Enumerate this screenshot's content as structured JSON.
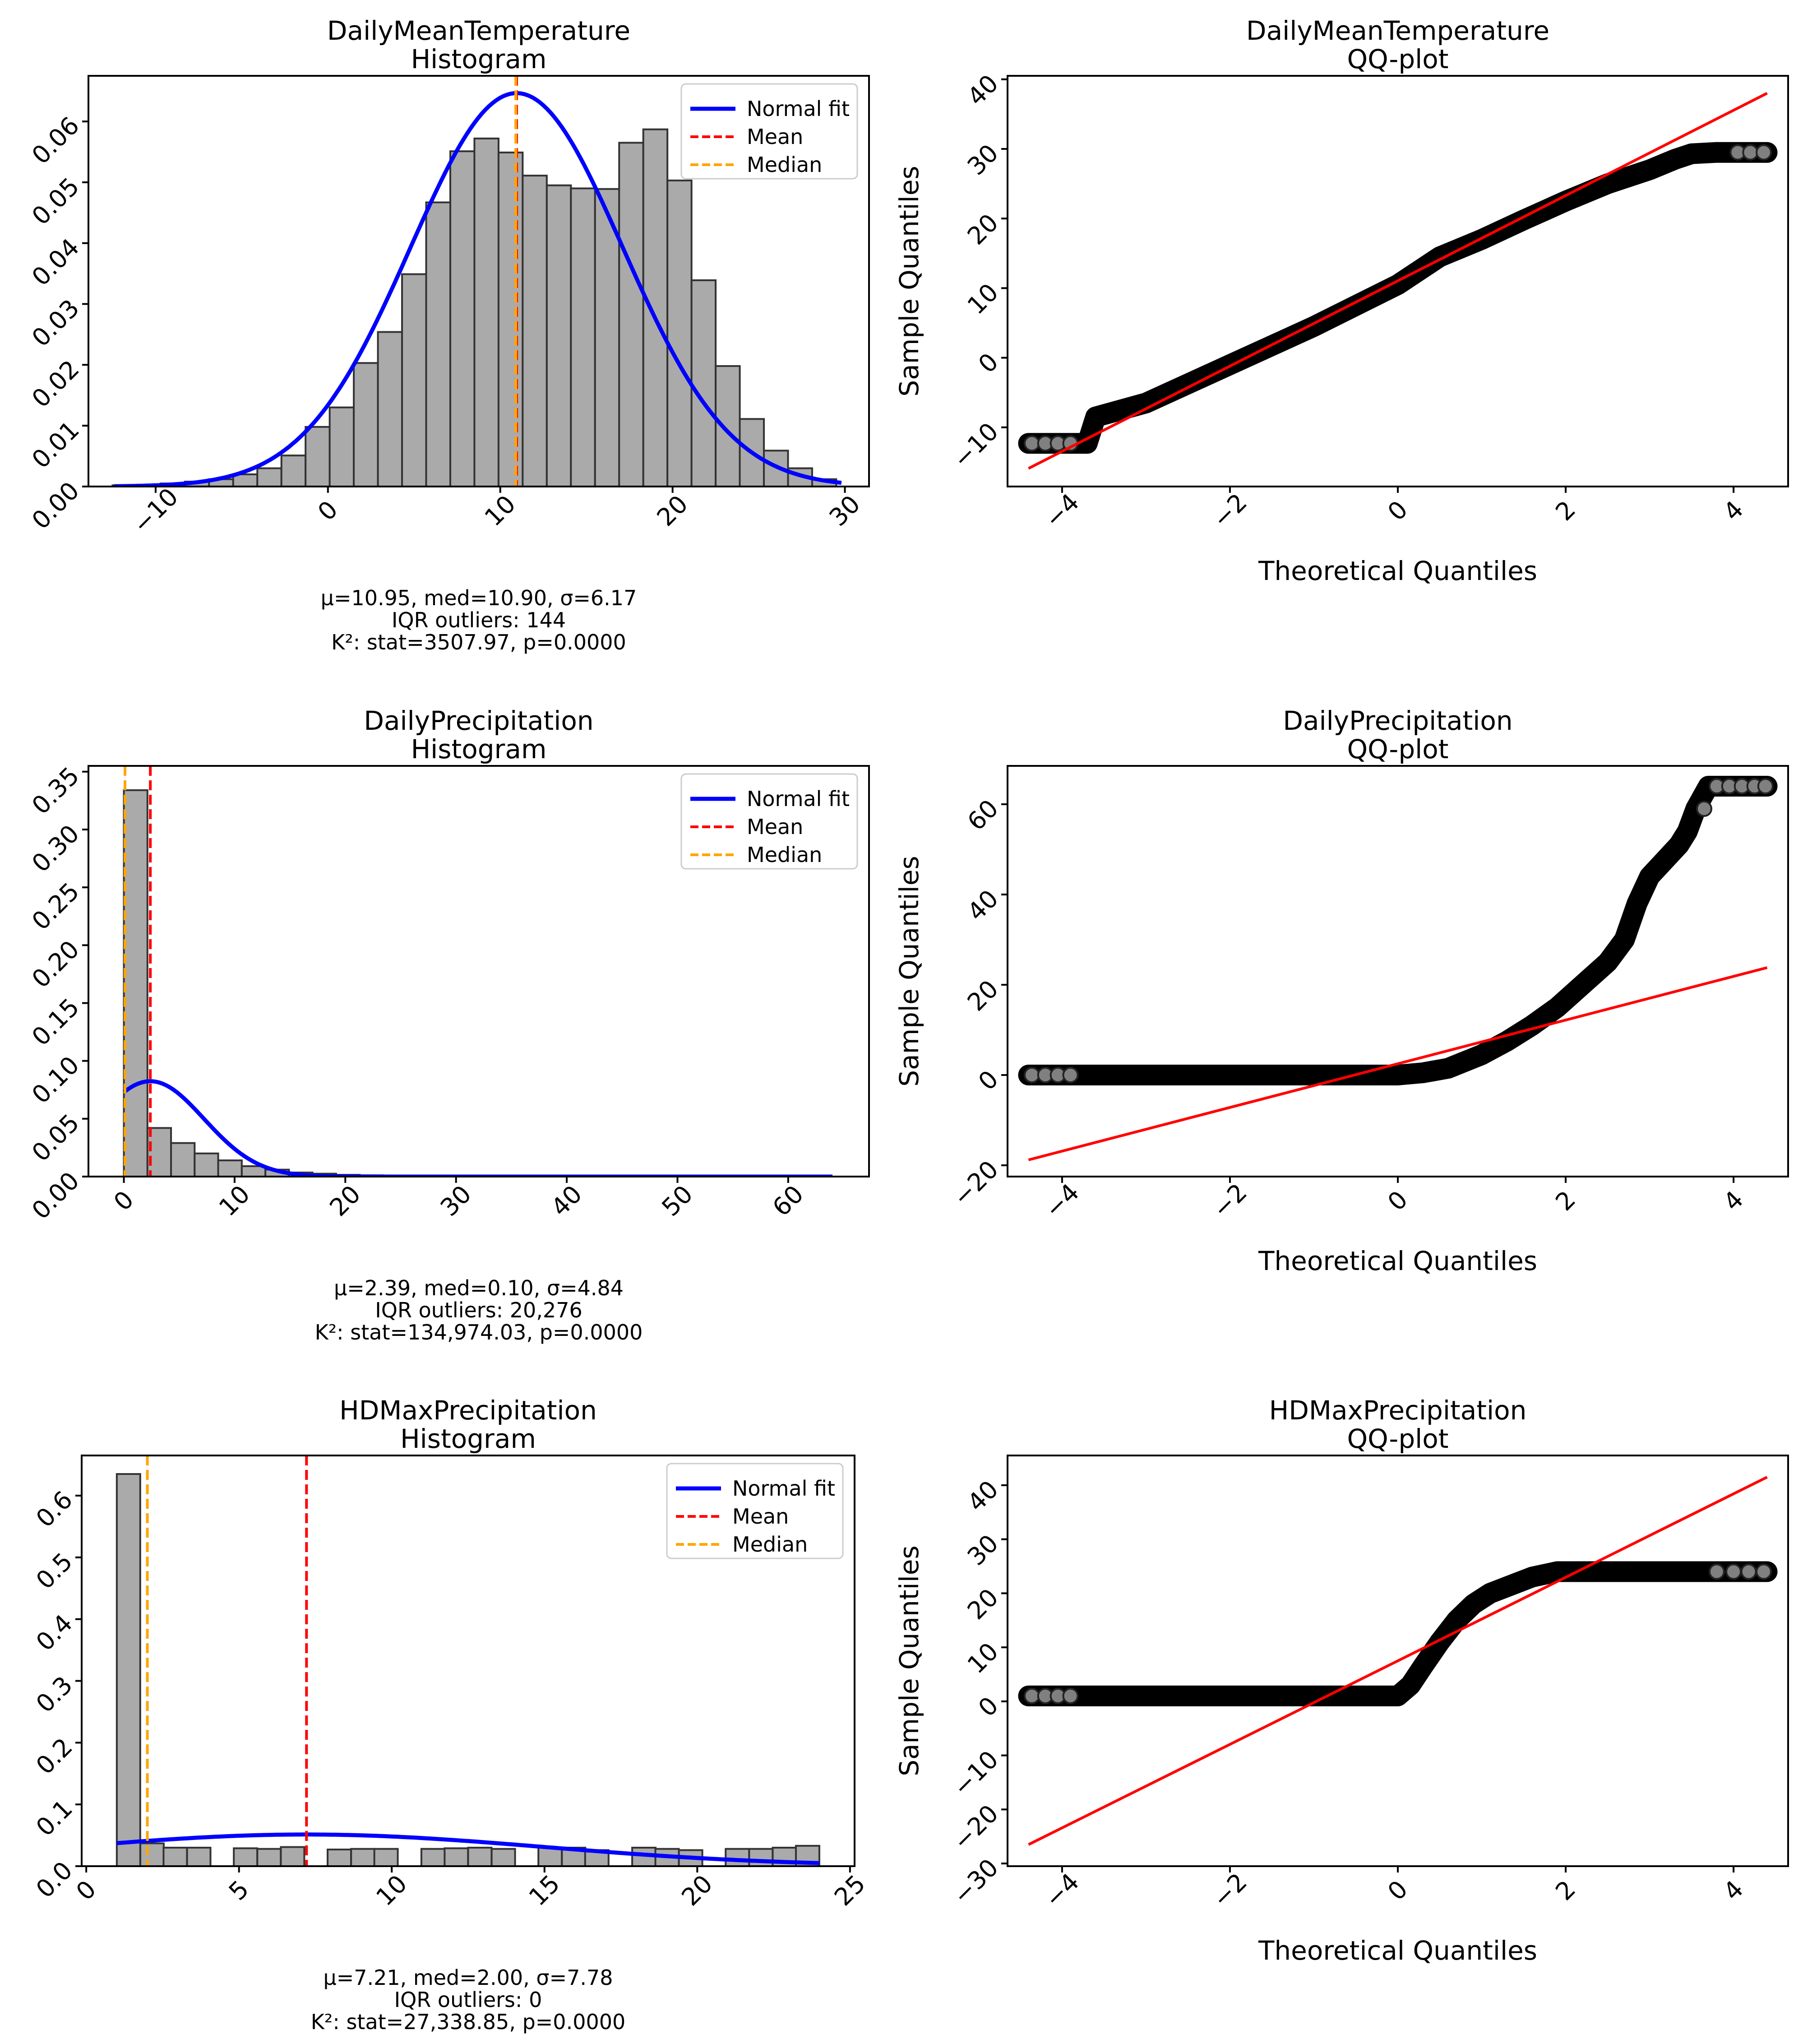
{
  "chart_data": [
    {
      "id": "h1",
      "type": "bar",
      "title": [
        "DailyMeanTemperature",
        "Histogram"
      ],
      "xlim": [
        -13.9,
        31.4
      ],
      "ylim": [
        0,
        0.0675
      ],
      "xticks": [
        -10,
        0,
        10,
        20,
        30
      ],
      "yticks": [
        0.0,
        0.01,
        0.02,
        0.03,
        0.04,
        0.05,
        0.06
      ],
      "ytick_labels": [
        "0.00",
        "0.01",
        "0.02",
        "0.03",
        "0.04",
        "0.05",
        "0.06"
      ],
      "bin_start": -12.5,
      "bin_width": 1.4,
      "values": [
        0.0002,
        0.0003,
        0.0005,
        0.0008,
        0.0012,
        0.002,
        0.003,
        0.0051,
        0.0098,
        0.013,
        0.0203,
        0.0254,
        0.0349,
        0.0467,
        0.0551,
        0.0572,
        0.0549,
        0.0511,
        0.0495,
        0.049,
        0.0489,
        0.0565,
        0.0587,
        0.0503,
        0.0339,
        0.0198,
        0.0111,
        0.0059,
        0.003,
        0.0012
      ],
      "fit": {
        "mu": 10.95,
        "sigma": 6.17,
        "x_range": [
          -12.4,
          29.8
        ]
      },
      "mean": 10.95,
      "median": 10.9,
      "legend": {
        "position": "upper right",
        "items": [
          "Normal fit",
          "Mean",
          "Median"
        ]
      },
      "stats": [
        "μ=10.95, med=10.90, σ=6.17",
        "IQR outliers: 144",
        "K²: stat=3507.97, p=0.0000"
      ]
    },
    {
      "id": "q1",
      "type": "scatter",
      "title": [
        "DailyMeanTemperature",
        "QQ-plot"
      ],
      "xlabel": "Theoretical Quantiles",
      "ylabel": "Sample Quantiles",
      "xlim": [
        -4.65,
        4.65
      ],
      "ylim": [
        -18.5,
        40.5
      ],
      "xticks": [
        -4,
        -2,
        0,
        2,
        4
      ],
      "yticks": [
        -10,
        0,
        10,
        20,
        30,
        40
      ],
      "ref_line": [
        [
          -4.4,
          -15.9
        ],
        [
          4.4,
          38.0
        ]
      ],
      "curve": [
        [
          -4.4,
          -12.3
        ],
        [
          -3.7,
          -12.3
        ],
        [
          -3.6,
          -8.5
        ],
        [
          -3.0,
          -6.5
        ],
        [
          -2.0,
          -1.0
        ],
        [
          -1.0,
          4.5
        ],
        [
          0.0,
          10.5
        ],
        [
          0.5,
          14.5
        ],
        [
          1.0,
          17.0
        ],
        [
          1.5,
          19.8
        ],
        [
          2.0,
          22.5
        ],
        [
          2.5,
          25.0
        ],
        [
          3.0,
          27.0
        ],
        [
          3.3,
          28.5
        ],
        [
          3.5,
          29.3
        ],
        [
          3.8,
          29.5
        ],
        [
          4.4,
          29.5
        ]
      ],
      "outliers": [
        [
          -4.36,
          -12.3
        ],
        [
          -4.2,
          -12.3
        ],
        [
          -4.05,
          -12.3
        ],
        [
          -3.9,
          -12.3
        ],
        [
          4.05,
          29.5
        ],
        [
          4.2,
          29.5
        ],
        [
          4.36,
          29.5
        ]
      ]
    },
    {
      "id": "h2",
      "type": "bar",
      "title": [
        "DailyPrecipitation",
        "Histogram"
      ],
      "xlim": [
        -3.2,
        67.3
      ],
      "ylim": [
        0,
        0.355
      ],
      "xticks": [
        0,
        10,
        20,
        30,
        40,
        50,
        60
      ],
      "yticks": [
        0.0,
        0.05,
        0.1,
        0.15,
        0.2,
        0.25,
        0.3,
        0.35
      ],
      "ytick_labels": [
        "0.00",
        "0.05",
        "0.10",
        "0.15",
        "0.20",
        "0.25",
        "0.30",
        "0.35"
      ],
      "bin_start": 0,
      "bin_width": 2.13,
      "values": [
        0.334,
        0.042,
        0.029,
        0.02,
        0.014,
        0.009,
        0.006,
        0.0035,
        0.0025,
        0.0015,
        0.0011,
        0.0008,
        0.0005,
        0.0003,
        0.0003,
        0.0002,
        0.0002,
        0.0001,
        0.0001,
        0.0001,
        0.0001,
        0.0001,
        0.0001,
        0.0001,
        0.0001,
        0.0001,
        0.0001,
        0.0001,
        0.0001,
        0.0001
      ],
      "fit": {
        "mu": 2.39,
        "sigma": 4.84,
        "x_range": [
          0,
          64
        ]
      },
      "mean": 2.39,
      "median": 0.1,
      "legend": {
        "position": "upper right",
        "items": [
          "Normal fit",
          "Mean",
          "Median"
        ]
      },
      "stats": [
        "μ=2.39, med=0.10, σ=4.84",
        "IQR outliers: 20,276",
        "K²: stat=134,974.03, p=0.0000"
      ]
    },
    {
      "id": "q2",
      "type": "scatter",
      "title": [
        "DailyPrecipitation",
        "QQ-plot"
      ],
      "xlabel": "Theoretical Quantiles",
      "ylabel": "Sample Quantiles",
      "xlim": [
        -4.65,
        4.65
      ],
      "ylim": [
        -22.5,
        68.5
      ],
      "xticks": [
        -4,
        -2,
        0,
        2,
        4
      ],
      "yticks": [
        -20,
        0,
        20,
        40,
        60
      ],
      "ref_line": [
        [
          -4.4,
          -18.8
        ],
        [
          4.4,
          23.8
        ]
      ],
      "curve": [
        [
          -4.4,
          0
        ],
        [
          0.0,
          0
        ],
        [
          0.3,
          0.5
        ],
        [
          0.6,
          1.5
        ],
        [
          1.0,
          4.5
        ],
        [
          1.3,
          7.5
        ],
        [
          1.6,
          11.0
        ],
        [
          1.9,
          15.0
        ],
        [
          2.2,
          20.0
        ],
        [
          2.5,
          25.0
        ],
        [
          2.7,
          30.0
        ],
        [
          2.85,
          38.0
        ],
        [
          3.0,
          44.0
        ],
        [
          3.2,
          48.0
        ],
        [
          3.35,
          51.0
        ],
        [
          3.45,
          54.0
        ],
        [
          3.55,
          59.0
        ],
        [
          3.7,
          64.0
        ],
        [
          4.4,
          64.0
        ]
      ],
      "outliers": [
        [
          -4.36,
          0
        ],
        [
          -4.2,
          0
        ],
        [
          -4.05,
          0
        ],
        [
          -3.9,
          0
        ],
        [
          3.65,
          59.0
        ],
        [
          3.8,
          64.0
        ],
        [
          3.95,
          64.0
        ],
        [
          4.1,
          64.0
        ],
        [
          4.25,
          64.0
        ],
        [
          4.38,
          64.0
        ]
      ]
    },
    {
      "id": "h3",
      "type": "bar",
      "title": [
        "HDMaxPrecipitation",
        "Histogram"
      ],
      "xlim": [
        -0.15,
        25.15
      ],
      "ylim": [
        0,
        0.665
      ],
      "xticks": [
        0,
        5,
        10,
        15,
        20,
        25
      ],
      "yticks": [
        0.0,
        0.1,
        0.2,
        0.3,
        0.4,
        0.5,
        0.6
      ],
      "ytick_labels": [
        "0.0",
        "0.1",
        "0.2",
        "0.3",
        "0.4",
        "0.5",
        "0.6"
      ],
      "bars": [
        [
          1.0,
          0.635
        ],
        [
          1.77,
          0.037
        ],
        [
          2.53,
          0.03
        ],
        [
          3.3,
          0.03
        ],
        [
          4.83,
          0.029
        ],
        [
          5.6,
          0.028
        ],
        [
          6.37,
          0.031
        ],
        [
          7.9,
          0.027
        ],
        [
          8.67,
          0.028
        ],
        [
          9.43,
          0.028
        ],
        [
          10.97,
          0.028
        ],
        [
          11.73,
          0.029
        ],
        [
          12.5,
          0.03
        ],
        [
          13.27,
          0.028
        ],
        [
          14.8,
          0.03
        ],
        [
          15.57,
          0.03
        ],
        [
          16.33,
          0.026
        ],
        [
          17.87,
          0.03
        ],
        [
          18.63,
          0.028
        ],
        [
          19.4,
          0.026
        ],
        [
          20.93,
          0.028
        ],
        [
          21.7,
          0.028
        ],
        [
          22.47,
          0.03
        ],
        [
          23.23,
          0.033
        ]
      ],
      "bin_width": 0.767,
      "fit": {
        "mu": 7.21,
        "sigma": 7.78,
        "x_range": [
          1,
          24
        ]
      },
      "mean": 7.21,
      "median": 2.0,
      "legend": {
        "position": "upper right",
        "items": [
          "Normal fit",
          "Mean",
          "Median"
        ]
      },
      "stats": [
        "μ=7.21, med=2.00, σ=7.78",
        "IQR outliers: 0",
        "K²: stat=27,338.85, p=0.0000"
      ]
    },
    {
      "id": "q3",
      "type": "scatter",
      "title": [
        "HDMaxPrecipitation",
        "QQ-plot"
      ],
      "xlabel": "Theoretical Quantiles",
      "ylabel": "Sample Quantiles",
      "xlim": [
        -4.65,
        4.65
      ],
      "ylim": [
        -30.5,
        45.5
      ],
      "xticks": [
        -4,
        -2,
        0,
        2,
        4
      ],
      "yticks": [
        -30,
        -20,
        -10,
        0,
        10,
        20,
        30,
        40
      ],
      "ref_line": [
        [
          -4.4,
          -26.5
        ],
        [
          4.4,
          41.5
        ]
      ],
      "curve": [
        [
          -4.4,
          1.0
        ],
        [
          0.0,
          1.0
        ],
        [
          0.15,
          3.0
        ],
        [
          0.3,
          6.5
        ],
        [
          0.5,
          11.0
        ],
        [
          0.7,
          15.0
        ],
        [
          0.9,
          18.0
        ],
        [
          1.1,
          20.0
        ],
        [
          1.35,
          21.5
        ],
        [
          1.6,
          23.0
        ],
        [
          1.9,
          24.0
        ],
        [
          4.4,
          24.0
        ]
      ],
      "outliers": [
        [
          -4.36,
          1.0
        ],
        [
          -4.2,
          1.0
        ],
        [
          -4.05,
          1.0
        ],
        [
          -3.9,
          1.0
        ],
        [
          3.8,
          24.0
        ],
        [
          4.0,
          24.0
        ],
        [
          4.18,
          24.0
        ],
        [
          4.36,
          24.0
        ]
      ]
    }
  ]
}
